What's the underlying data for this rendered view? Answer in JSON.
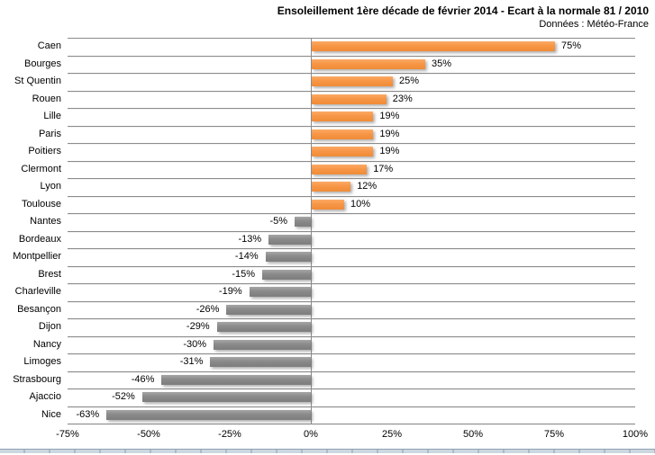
{
  "header": {
    "title": "Ensoleillement 1ère décade de février 2014 - Ecart à la normale 81 / 2010",
    "subtitle": "Données : Météo-France"
  },
  "chart_data": {
    "type": "bar",
    "orientation": "horizontal",
    "title": "Ensoleillement 1ère décade de février 2014 - Ecart à la normale 81 / 2010",
    "subtitle": "Données : Météo-France",
    "categories": [
      "Caen",
      "Bourges",
      "St Quentin",
      "Rouen",
      "Lille",
      "Paris",
      "Poitiers",
      "Clermont",
      "Lyon",
      "Toulouse",
      "Nantes",
      "Bordeaux",
      "Montpellier",
      "Brest",
      "Charleville",
      "Besançon",
      "Dijon",
      "Nancy",
      "Limoges",
      "Strasbourg",
      "Ajaccio",
      "Nice"
    ],
    "values": [
      75,
      35,
      25,
      23,
      19,
      19,
      19,
      17,
      12,
      10,
      -5,
      -13,
      -14,
      -15,
      -19,
      -26,
      -29,
      -30,
      -31,
      -46,
      -52,
      -63
    ],
    "value_labels": [
      "75%",
      "35%",
      "25%",
      "23%",
      "19%",
      "19%",
      "19%",
      "17%",
      "12%",
      "10%",
      "-5%",
      "-13%",
      "-14%",
      "-15%",
      "-19%",
      "-26%",
      "-29%",
      "-30%",
      "-31%",
      "-46%",
      "-52%",
      "-63%"
    ],
    "x_ticks": [
      -75,
      -50,
      -25,
      0,
      25,
      50,
      75,
      100
    ],
    "x_tick_labels": [
      "-75%",
      "-50%",
      "-25%",
      "0%",
      "25%",
      "50%",
      "75%",
      "100%"
    ],
    "xlim": [
      -75,
      100
    ],
    "grid": "horizontal-row-separators",
    "legend": "none",
    "positive_color": "#F79646",
    "negative_color": "#8A8A8A",
    "gridline_color": "#8C8C8C",
    "background_color": "#FFFFFF"
  }
}
